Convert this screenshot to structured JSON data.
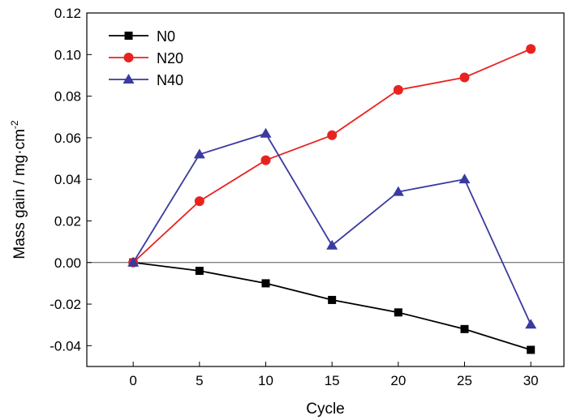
{
  "chart_data": {
    "type": "line",
    "title": "",
    "xlabel": "Cycle",
    "ylabel": "Mass gain / mg·cm",
    "ylabel_superscript": "-2",
    "x": [
      0,
      5,
      10,
      15,
      20,
      25,
      30
    ],
    "xlim": [
      -3.5,
      32.5
    ],
    "ylim": [
      -0.05,
      0.12
    ],
    "xticks": [
      0,
      5,
      10,
      15,
      20,
      25,
      30
    ],
    "yticks": [
      -0.04,
      -0.02,
      0.0,
      0.02,
      0.04,
      0.06,
      0.08,
      0.1,
      0.12
    ],
    "ytick_labels": [
      "-0.04",
      "-0.02",
      "0.00",
      "0.02",
      "0.04",
      "0.06",
      "0.08",
      "0.10",
      "0.12"
    ],
    "grid": false,
    "zero_line": true,
    "legend_position": "top-left",
    "series": [
      {
        "name": "N0",
        "color": "#000000",
        "marker": "square",
        "values": [
          0,
          -0.004,
          -0.01,
          -0.018,
          -0.024,
          -0.032,
          -0.042
        ]
      },
      {
        "name": "N20",
        "color": "#e8231f",
        "marker": "circle",
        "values": [
          0,
          0.0295,
          0.0492,
          0.0612,
          0.083,
          0.089,
          0.1027
        ]
      },
      {
        "name": "N40",
        "color": "#3a3aa0",
        "marker": "triangle",
        "values": [
          0,
          0.052,
          0.062,
          0.0082,
          0.034,
          0.04,
          -0.0298
        ]
      }
    ]
  }
}
